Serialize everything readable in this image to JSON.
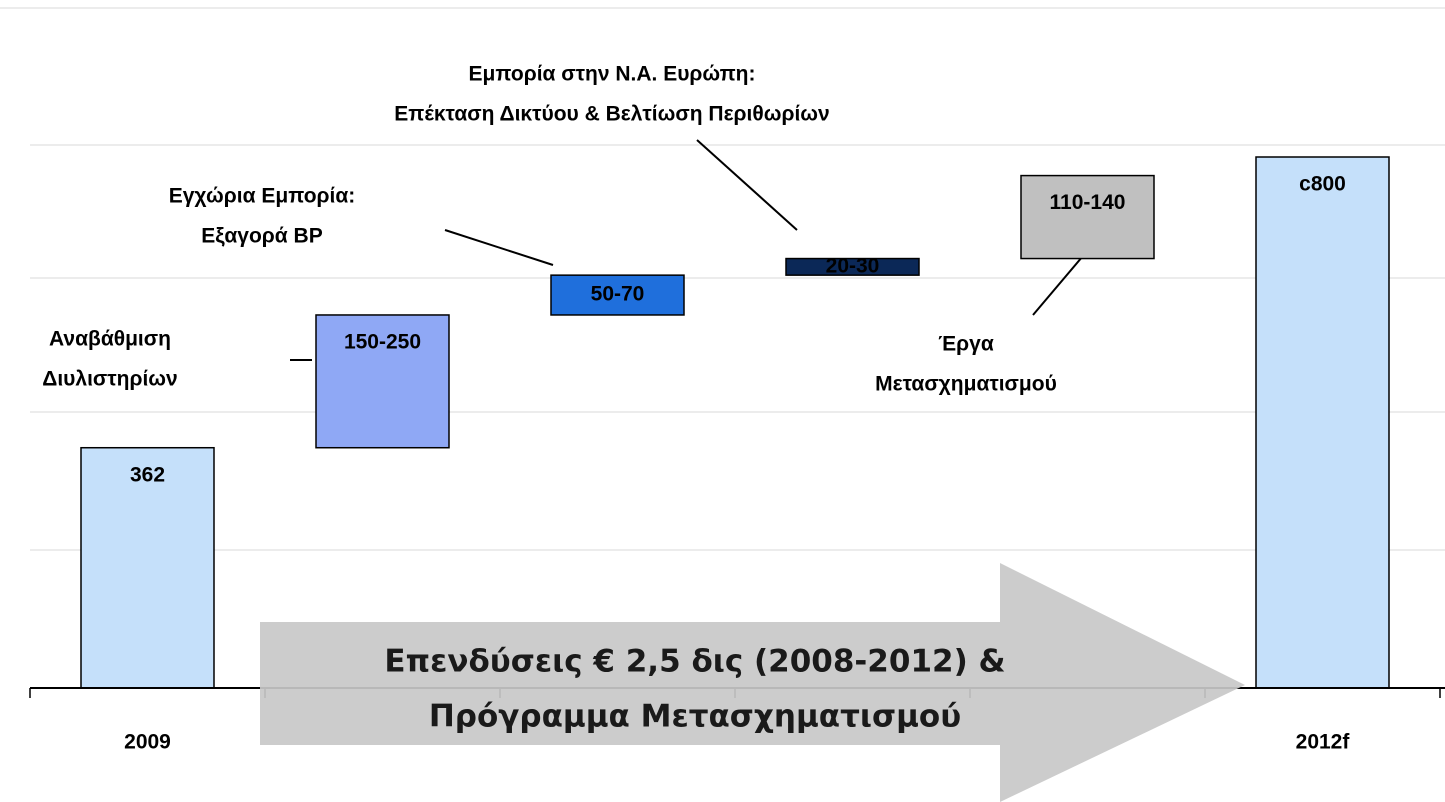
{
  "chart_data": {
    "type": "waterfall",
    "categories": [
      "2009",
      null,
      null,
      null,
      null,
      "2012f"
    ],
    "values": [
      362,
      200,
      60,
      25,
      125,
      800
    ],
    "value_labels": [
      "362",
      "150-250",
      "50-70",
      "20-30",
      "110-140",
      "c800"
    ],
    "colors": [
      "#c5e0fa",
      "#8fa8f5",
      "#1f6fdc",
      "#0b2857",
      "#c0c0c0",
      "#c5e0fa"
    ],
    "label_colors": [
      "#000000",
      "#000000",
      "#ffffff",
      "#ffffff",
      "#000000",
      "#000000"
    ],
    "total_index": 5,
    "annotations": [
      [
        "Αναβάθμιση",
        "Διυλιστηρίων"
      ],
      [
        "Εγχώρια Εμπορία:",
        "Εξαγορά BP"
      ],
      [
        "Εμπορία στην Ν.Α. Ευρώπη:",
        "Επέκταση Δικτύου & Βελτίωση Περιθωρίων"
      ],
      [
        "Έργα",
        "Μετασχηματισμού"
      ]
    ],
    "arrow_text": [
      "Επενδύσεις € 2,5 δις (2008-2012) &",
      "Πρόγραμμα Μετασχηματισμού"
    ]
  }
}
